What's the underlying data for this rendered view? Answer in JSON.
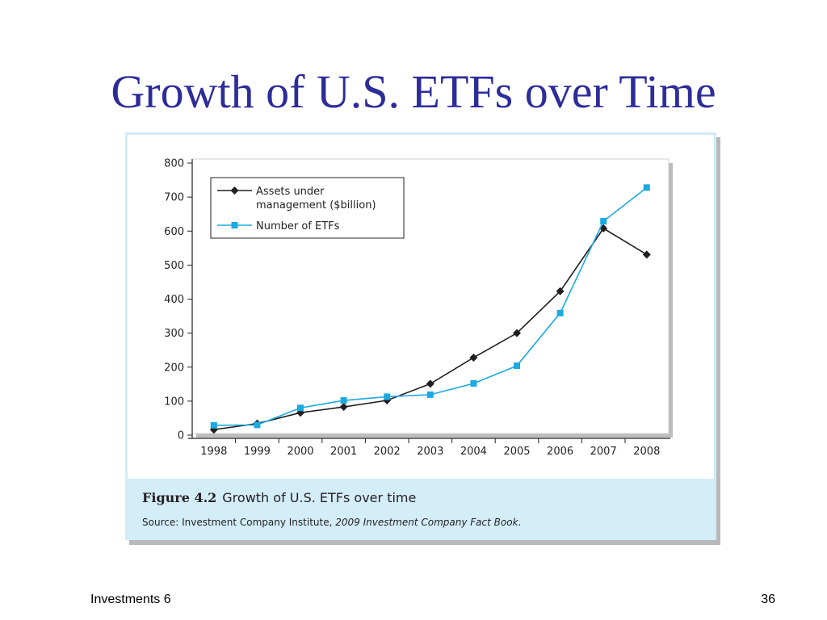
{
  "slide": {
    "title": "Growth of U.S. ETFs over Time",
    "footer_left": "Investments 6",
    "page_number": "36"
  },
  "figure": {
    "label": "Figure 4.2",
    "caption": "Growth of U.S. ETFs over time",
    "source_prefix": "Source: Investment Company Institute, ",
    "source_italic": "2009 Investment Company Fact Book",
    "source_suffix": "."
  },
  "colors": {
    "title": "#2d2d9a",
    "assets_series": "#231f20",
    "etf_series": "#1ba9e1",
    "caption_band": "#d3edf9"
  },
  "chart_data": {
    "type": "line",
    "categories": [
      "1998",
      "1999",
      "2000",
      "2001",
      "2002",
      "2003",
      "2004",
      "2005",
      "2006",
      "2007",
      "2008"
    ],
    "ylim": [
      0,
      800
    ],
    "yticks": [
      0,
      100,
      200,
      300,
      400,
      500,
      600,
      700,
      800
    ],
    "grid": false,
    "legend_position": "top-left",
    "series": [
      {
        "name_lines": [
          "Assets under",
          "management ($billion)"
        ],
        "marker": "diamond",
        "color": "#231f20",
        "values": [
          16,
          34,
          66,
          83,
          102,
          151,
          228,
          300,
          423,
          608,
          531
        ]
      },
      {
        "name_lines": [
          "Number of ETFs"
        ],
        "marker": "square",
        "color": "#1ba9e1",
        "values": [
          29,
          30,
          80,
          102,
          113,
          119,
          152,
          204,
          359,
          629,
          728
        ]
      }
    ]
  }
}
